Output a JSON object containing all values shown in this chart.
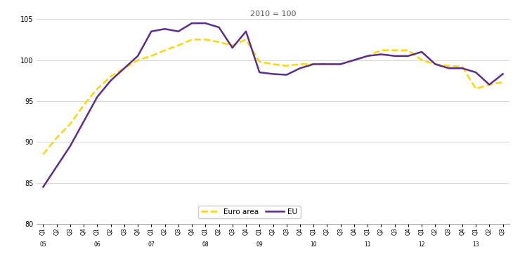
{
  "title": "2010 = 100",
  "ylim": [
    80,
    105
  ],
  "yticks": [
    80,
    85,
    90,
    95,
    100,
    105
  ],
  "legend_labels": [
    "Euro area",
    "EU"
  ],
  "background_color": "#ffffff",
  "grid_color": "#d0d0d0",
  "euro_area_color": "#FFD700",
  "eu_color": "#5B2D8E",
  "x_labels": [
    "Q1",
    "Q2",
    "Q3",
    "Q4",
    "Q1",
    "Q2",
    "Q3",
    "Q4",
    "Q1",
    "Q2",
    "Q3",
    "Q4",
    "Q1",
    "Q2",
    "Q3",
    "Q4",
    "Q1",
    "Q2",
    "Q3",
    "Q4",
    "Q1",
    "Q2",
    "Q3",
    "Q4",
    "Q1",
    "Q2",
    "Q3",
    "Q4",
    "Q1",
    "Q2",
    "Q3",
    "Q4",
    "Q1",
    "Q2",
    "Q3"
  ],
  "x_year_positions": [
    0,
    4,
    8,
    12,
    16,
    20,
    24,
    28,
    32
  ],
  "x_years": [
    "05",
    "06",
    "07",
    "08",
    "09",
    "10",
    "11",
    "12",
    "13"
  ],
  "euro_area_values": [
    88.5,
    90.5,
    92.2,
    94.5,
    96.5,
    98.0,
    99.0,
    100.0,
    100.5,
    101.2,
    101.8,
    102.5,
    102.5,
    102.2,
    101.8,
    102.5,
    99.8,
    99.5,
    99.3,
    99.5,
    99.5,
    99.5,
    99.5,
    100.0,
    100.5,
    101.2,
    101.2,
    101.2,
    100.0,
    99.5,
    99.3,
    99.2,
    96.5,
    97.0,
    97.3
  ],
  "eu_values": [
    84.5,
    87.0,
    89.5,
    92.5,
    95.5,
    97.5,
    99.0,
    100.5,
    103.5,
    103.8,
    103.5,
    104.5,
    104.5,
    104.0,
    101.5,
    103.5,
    98.5,
    98.3,
    98.2,
    99.0,
    99.5,
    99.5,
    99.5,
    100.0,
    100.5,
    100.7,
    100.5,
    100.5,
    101.0,
    99.5,
    99.0,
    99.0,
    98.5,
    97.0,
    98.3
  ]
}
